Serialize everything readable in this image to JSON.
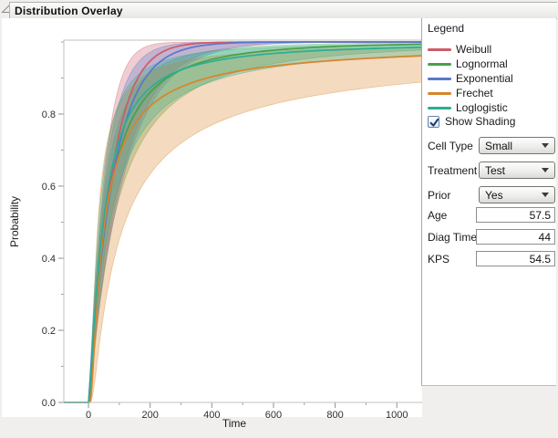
{
  "window": {
    "title": "Distribution Overlay"
  },
  "chart_data": {
    "type": "line",
    "xlabel": "Time",
    "ylabel": "Probability",
    "xlim": [
      -80,
      1094
    ],
    "ylim": [
      0,
      1.005
    ],
    "x_major_ticks": [
      0,
      200,
      400,
      600,
      800,
      1000
    ],
    "x_minor_step": 100,
    "y_major_ticks": [
      0.0,
      0.2,
      0.4,
      0.6,
      0.8
    ],
    "y_minor_step": 0.1,
    "fill_opacity": 0.3,
    "description": "Cumulative probability (CDF) curves with shaded confidence bands for five fitted distributions",
    "series": [
      {
        "name": "Weibull",
        "color": "#CE5A6A",
        "cdf": {
          "family": "weibull",
          "scale": 75,
          "shape": 1.1
        },
        "band": {
          "upper": {
            "family": "weibull",
            "scale": 52,
            "shape": 1.15
          },
          "lower": {
            "family": "weibull",
            "scale": 110,
            "shape": 1.0
          }
        }
      },
      {
        "name": "Lognormal",
        "color": "#44A248",
        "cdf": {
          "family": "lognormal",
          "mu": 4.0,
          "sigma": 1.2
        },
        "band": {
          "upper": {
            "family": "lognormal",
            "mu": 3.72,
            "sigma": 1.15
          },
          "lower": {
            "family": "lognormal",
            "mu": 4.38,
            "sigma": 1.3
          }
        }
      },
      {
        "name": "Exponential",
        "color": "#5A77CD",
        "cdf": {
          "family": "exponential",
          "scale": 80
        },
        "band": {
          "upper": {
            "family": "exponential",
            "scale": 56
          },
          "lower": {
            "family": "exponential",
            "scale": 116
          }
        }
      },
      {
        "name": "Frechet",
        "color": "#D98429",
        "cdf": {
          "family": "frechet",
          "scale": 36,
          "shape": 0.95
        },
        "band": {
          "upper": {
            "family": "frechet",
            "scale": 22,
            "shape": 1.1
          },
          "lower": {
            "family": "frechet",
            "scale": 75,
            "shape": 0.8
          }
        }
      },
      {
        "name": "Loglogistic",
        "color": "#2BAE95",
        "cdf": {
          "family": "loglogistic",
          "scale": 48,
          "shape": 1.35
        },
        "band": {
          "upper": {
            "family": "loglogistic",
            "scale": 33,
            "shape": 1.45
          },
          "lower": {
            "family": "loglogistic",
            "scale": 70,
            "shape": 1.2
          }
        }
      }
    ]
  },
  "panel": {
    "legend_title": "Legend",
    "show_shading": {
      "label": "Show Shading",
      "checked": true
    },
    "selects": [
      {
        "label": "Cell Type",
        "value": "Small"
      },
      {
        "label": "Treatment",
        "value": "Test"
      },
      {
        "label": "Prior",
        "value": "Yes"
      }
    ],
    "fields": [
      {
        "label": "Age",
        "value": "57.5"
      },
      {
        "label": "Diag Time",
        "value": "44"
      },
      {
        "label": "KPS",
        "value": "54.5"
      }
    ]
  }
}
